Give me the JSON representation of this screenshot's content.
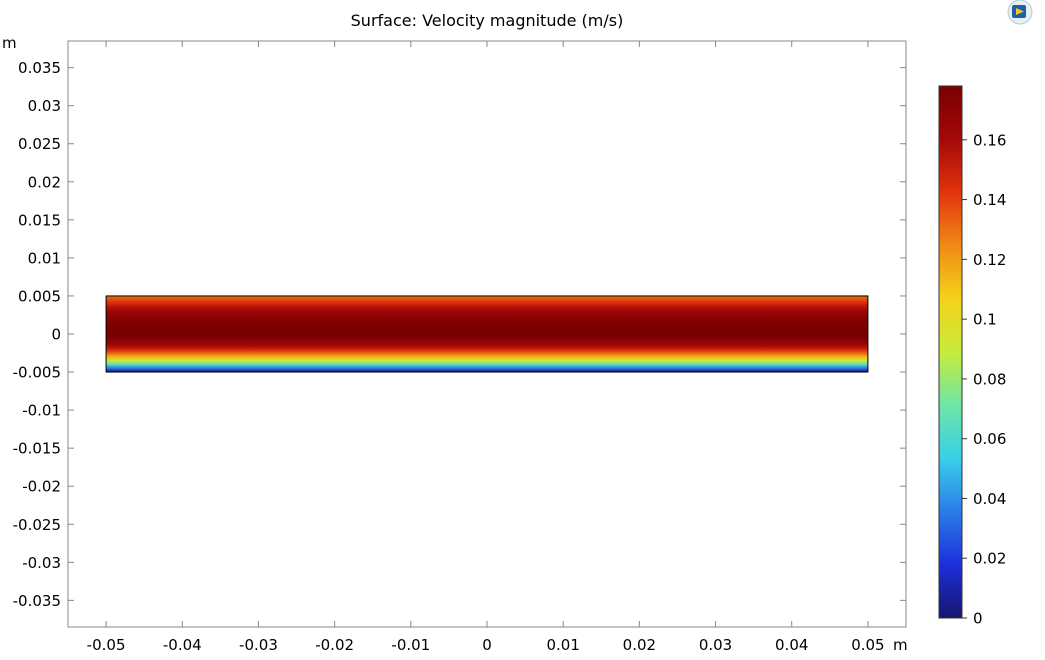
{
  "chart_data": {
    "type": "heatmap",
    "title": "Surface: Velocity magnitude (m/s)",
    "x_unit_label": "m",
    "y_unit_label": "m",
    "xlim": [
      -0.055,
      0.055
    ],
    "ylim": [
      -0.0385,
      0.0385
    ],
    "x_ticks": [
      {
        "value": -0.05,
        "label": "-0.05"
      },
      {
        "value": -0.04,
        "label": "-0.04"
      },
      {
        "value": -0.03,
        "label": "-0.03"
      },
      {
        "value": -0.02,
        "label": "-0.02"
      },
      {
        "value": -0.01,
        "label": "-0.01"
      },
      {
        "value": 0,
        "label": "0"
      },
      {
        "value": 0.01,
        "label": "0.01"
      },
      {
        "value": 0.02,
        "label": "0.02"
      },
      {
        "value": 0.03,
        "label": "0.03"
      },
      {
        "value": 0.04,
        "label": "0.04"
      },
      {
        "value": 0.05,
        "label": "0.05"
      }
    ],
    "y_ticks": [
      {
        "value": 0.035,
        "label": "0.035"
      },
      {
        "value": 0.03,
        "label": "0.03"
      },
      {
        "value": 0.025,
        "label": "0.025"
      },
      {
        "value": 0.02,
        "label": "0.02"
      },
      {
        "value": 0.015,
        "label": "0.015"
      },
      {
        "value": 0.01,
        "label": "0.01"
      },
      {
        "value": 0.005,
        "label": "0.005"
      },
      {
        "value": 0,
        "label": "0"
      },
      {
        "value": -0.005,
        "label": "-0.005"
      },
      {
        "value": -0.01,
        "label": "-0.01"
      },
      {
        "value": -0.015,
        "label": "-0.015"
      },
      {
        "value": -0.02,
        "label": "-0.02"
      },
      {
        "value": -0.025,
        "label": "-0.025"
      },
      {
        "value": -0.03,
        "label": "-0.03"
      },
      {
        "value": -0.035,
        "label": "-0.035"
      }
    ],
    "domain": {
      "x_min": -0.05,
      "x_max": 0.05,
      "y_min": -0.005,
      "y_max": 0.005
    },
    "field": {
      "description_by_y": "velocity magnitude varies across channel height",
      "y": [
        -0.005,
        -0.0045,
        -0.004,
        -0.0035,
        -0.003,
        -0.0025,
        -0.002,
        -0.0015,
        -0.001,
        -0.0005,
        0,
        0.0005,
        0.001,
        0.0015,
        0.002,
        0.0025,
        0.003,
        0.0035,
        0.004,
        0.0045,
        0.005
      ],
      "v": [
        0,
        0.034,
        0.065,
        0.092,
        0.114,
        0.133,
        0.149,
        0.161,
        0.17,
        0.176,
        0.178,
        0.178,
        0.177,
        0.175,
        0.172,
        0.168,
        0.163,
        0.156,
        0.147,
        0.138,
        0.13
      ]
    },
    "colorbar": {
      "min": 0,
      "max": 0.178,
      "ticks": [
        {
          "value": 0,
          "label": "0"
        },
        {
          "value": 0.02,
          "label": "0.02"
        },
        {
          "value": 0.04,
          "label": "0.04"
        },
        {
          "value": 0.06,
          "label": "0.06"
        },
        {
          "value": 0.08,
          "label": "0.08"
        },
        {
          "value": 0.1,
          "label": "0.1"
        },
        {
          "value": 0.12,
          "label": "0.12"
        },
        {
          "value": 0.14,
          "label": "0.14"
        },
        {
          "value": 0.16,
          "label": "0.16"
        }
      ],
      "colormap": "rainbow",
      "stops": [
        "#16166e",
        "#1c2fd9",
        "#2a7de8",
        "#39cfe8",
        "#6de6a7",
        "#c6ec3a",
        "#f4d21c",
        "#f08a14",
        "#e2340d",
        "#a40808",
        "#7b0000"
      ]
    },
    "grid": false,
    "legend_position": "right",
    "frame_color": "#888888"
  },
  "logo": {
    "name": "comsol-logo-icon"
  }
}
